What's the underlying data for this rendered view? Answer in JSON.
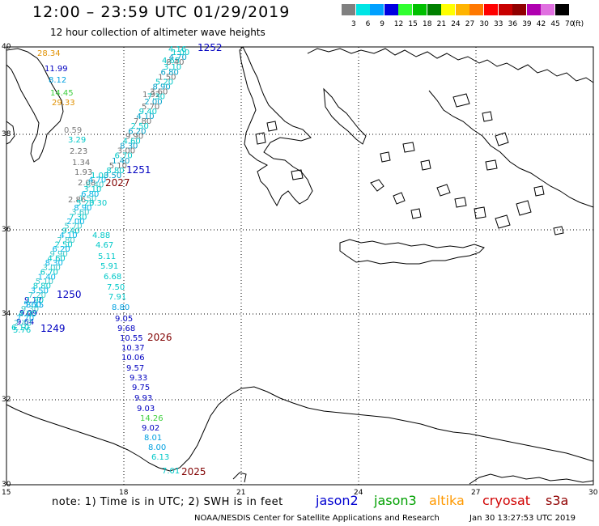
{
  "header": {
    "title": "12:00 – 23:59 UTC 01/29/2019",
    "subtitle": "12 hour collection of altimeter wave heights"
  },
  "colorbar": {
    "unit": "(ft)",
    "entries": [
      {
        "label": "3",
        "color": "#808080"
      },
      {
        "label": "6",
        "color": "#00e5e5"
      },
      {
        "label": "9",
        "color": "#00a0ff"
      },
      {
        "label": "12",
        "color": "#0000e0"
      },
      {
        "label": "15",
        "color": "#30ff30"
      },
      {
        "label": "18",
        "color": "#00c000"
      },
      {
        "label": "21",
        "color": "#008000"
      },
      {
        "label": "24",
        "color": "#ffff00"
      },
      {
        "label": "27",
        "color": "#ffb400"
      },
      {
        "label": "30",
        "color": "#ff7800"
      },
      {
        "label": "33",
        "color": "#ff0000"
      },
      {
        "label": "36",
        "color": "#c80000"
      },
      {
        "label": "39",
        "color": "#900000"
      },
      {
        "label": "42",
        "color": "#b000b0"
      },
      {
        "label": "45",
        "color": "#e070e0"
      },
      {
        "label": "70",
        "color": "#000000"
      }
    ]
  },
  "axes": {
    "lat_ticks": [
      "40",
      "38",
      "36",
      "34",
      "32",
      "30"
    ],
    "lon_ticks": [
      "15",
      "18",
      "21",
      "24",
      "27",
      "30"
    ]
  },
  "track": {
    "west": [
      {
        "text": "28.34",
        "color": "#e09000"
      },
      {
        "text": "11.99",
        "color": "#0000c0"
      },
      {
        "text": "8.12",
        "color": "#00a0e0"
      },
      {
        "text": "14.45",
        "color": "#40d040"
      },
      {
        "text": "29.33",
        "color": "#e09000"
      },
      {
        "text": "0.59",
        "color": "#808080"
      },
      {
        "text": "3.29",
        "color": "#00c8c8"
      },
      {
        "text": "2.23",
        "color": "#707070"
      },
      {
        "text": "1.34",
        "color": "#707070"
      },
      {
        "text": "1.93",
        "color": "#707070"
      },
      {
        "text": "2.08",
        "color": "#707070"
      },
      {
        "text": "2.86",
        "color": "#707070"
      },
      {
        "text": "3.30",
        "color": "#00c8c8"
      },
      {
        "text": "4.88",
        "color": "#00c8c8"
      },
      {
        "text": "4.67",
        "color": "#00c8c8"
      },
      {
        "text": "5.11",
        "color": "#00c8c8"
      },
      {
        "text": "5.91",
        "color": "#00c8c8"
      },
      {
        "text": "6.68",
        "color": "#00c8c8"
      },
      {
        "text": "7.50",
        "color": "#00c8c8"
      },
      {
        "text": "7.91",
        "color": "#00c8c8"
      },
      {
        "text": "8.80",
        "color": "#00a0e0"
      },
      {
        "text": "9.05",
        "color": "#0000c0"
      },
      {
        "text": "9.68",
        "color": "#0000c0"
      },
      {
        "text": "10.55",
        "color": "#0000c0"
      },
      {
        "text": "10.37",
        "color": "#0000c0"
      },
      {
        "text": "10.06",
        "color": "#0000c0"
      },
      {
        "text": "9.57",
        "color": "#0000c0"
      },
      {
        "text": "9.33",
        "color": "#0000c0"
      },
      {
        "text": "9.75",
        "color": "#0000c0"
      },
      {
        "text": "9.93",
        "color": "#0000c0"
      },
      {
        "text": "9.03",
        "color": "#0000c0"
      },
      {
        "text": "14.26",
        "color": "#40d040"
      },
      {
        "text": "9.02",
        "color": "#0000c0"
      },
      {
        "text": "8.01",
        "color": "#00a0e0"
      },
      {
        "text": "8.00",
        "color": "#00a0e0"
      },
      {
        "text": "6.13",
        "color": "#00c8c8"
      },
      {
        "text": "7.01",
        "color": "#00c8c8"
      },
      {
        "text": "9.17",
        "color": "#0000c0"
      },
      {
        "text": "8.15",
        "color": "#00a0e0"
      },
      {
        "text": "9.09",
        "color": "#0000c0"
      },
      {
        "text": "9.64",
        "color": "#0000c0"
      },
      {
        "text": "5.76",
        "color": "#00c8c8"
      }
    ],
    "east": [
      {
        "text": "4.16",
        "color": "#00c8c8"
      },
      {
        "text": "4.65",
        "color": "#00c8c8"
      },
      {
        "text": "1.92",
        "color": "#707070"
      }
    ],
    "times": [
      {
        "text": "1252",
        "color": "#0000c0"
      },
      {
        "text": "1251",
        "color": "#0000c0"
      },
      {
        "text": "2027",
        "color": "#800000"
      },
      {
        "text": "1250",
        "color": "#0000c0"
      },
      {
        "text": "1249",
        "color": "#0000c0"
      },
      {
        "text": "2026",
        "color": "#800000"
      },
      {
        "text": "2025",
        "color": "#800000"
      }
    ]
  },
  "footer": {
    "note": "note:  1) Time is in UTC;  2) SWH is in feet",
    "satellites": [
      {
        "name": "jason2",
        "color": "#0000d0"
      },
      {
        "name": "jason3",
        "color": "#00a000"
      },
      {
        "name": "altika",
        "color": "#ff9900"
      },
      {
        "name": "cryosat",
        "color": "#d00000"
      },
      {
        "name": "s3a",
        "color": "#900000"
      }
    ],
    "credit": "NOAA/NESDIS Center for Satellite Applications and Research",
    "timestamp": "Jan 30 13:27:53 UTC 2019"
  }
}
